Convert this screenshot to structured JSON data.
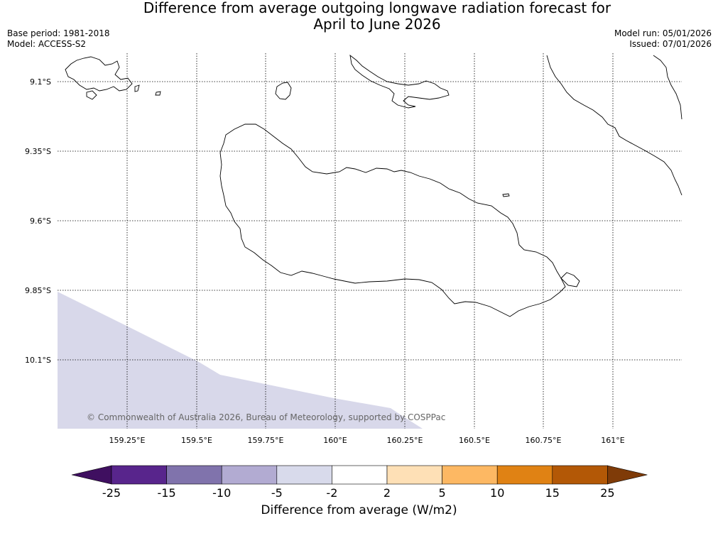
{
  "title_line1": "Difference from average outgoing longwave radiation forecast for",
  "title_line2": "April to June 2026",
  "meta_left": [
    "Base period: 1981-2018",
    "Model: ACCESS-S2"
  ],
  "meta_right": [
    "Model run: 05/01/2026",
    "Issued: 07/01/2026"
  ],
  "map": {
    "lat_labels": [
      "9.1°S",
      "9.35°S",
      "9.6°S",
      "9.85°S",
      "10.1°S"
    ],
    "lon_labels": [
      "159.25°E",
      "159.5°E",
      "159.75°E",
      "160°E",
      "160.25°E",
      "160.5°E",
      "160.75°E",
      "161°E"
    ],
    "copyright": "© Commonwealth of Australia 2026, Bureau of Meteorology, supported by COSPPac",
    "shaded_category": "-5 to -2",
    "shade_color": "#d8d8ea"
  },
  "colorbar": {
    "label": "Difference from average (W/m2)",
    "ticks": [
      "-25",
      "-15",
      "-10",
      "-5",
      "-2",
      "2",
      "5",
      "10",
      "15",
      "25"
    ],
    "colors": [
      "#3f0f60",
      "#58258c",
      "#8073ac",
      "#b2abd2",
      "#d8daeb",
      "#ffffff",
      "#fee0b6",
      "#fdb863",
      "#e08214",
      "#b35806",
      "#7f3b08"
    ]
  }
}
